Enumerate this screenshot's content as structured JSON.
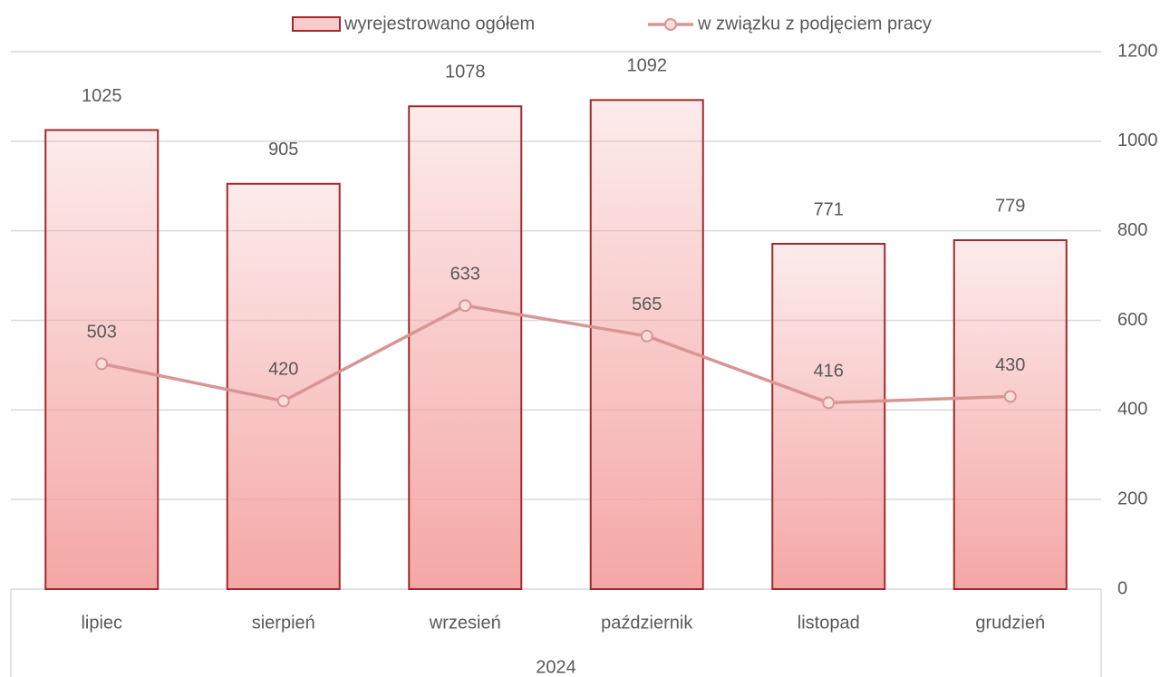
{
  "chart_data": {
    "type": "bar",
    "categories": [
      "lipiec",
      "sierpień",
      "wrzesień",
      "październik",
      "listopad",
      "grudzień"
    ],
    "group_label": "2024",
    "series": [
      {
        "name": "wyrejestrowano ogółem",
        "type": "bar",
        "color": "#f4a7a6",
        "edge_color": "#a3282b",
        "values": [
          1025,
          905,
          1078,
          1092,
          771,
          779
        ]
      },
      {
        "name": "w związku z podjęciem pracy",
        "type": "line",
        "color": "#d99594",
        "marker_fill": "#f9dcdc",
        "values": [
          503,
          420,
          633,
          565,
          416,
          430
        ]
      }
    ],
    "ylim": [
      0,
      1200
    ],
    "yticks": [
      0,
      200,
      400,
      600,
      800,
      1000,
      1200
    ],
    "y_axis_side": "right",
    "grid": true,
    "legend": "top"
  }
}
